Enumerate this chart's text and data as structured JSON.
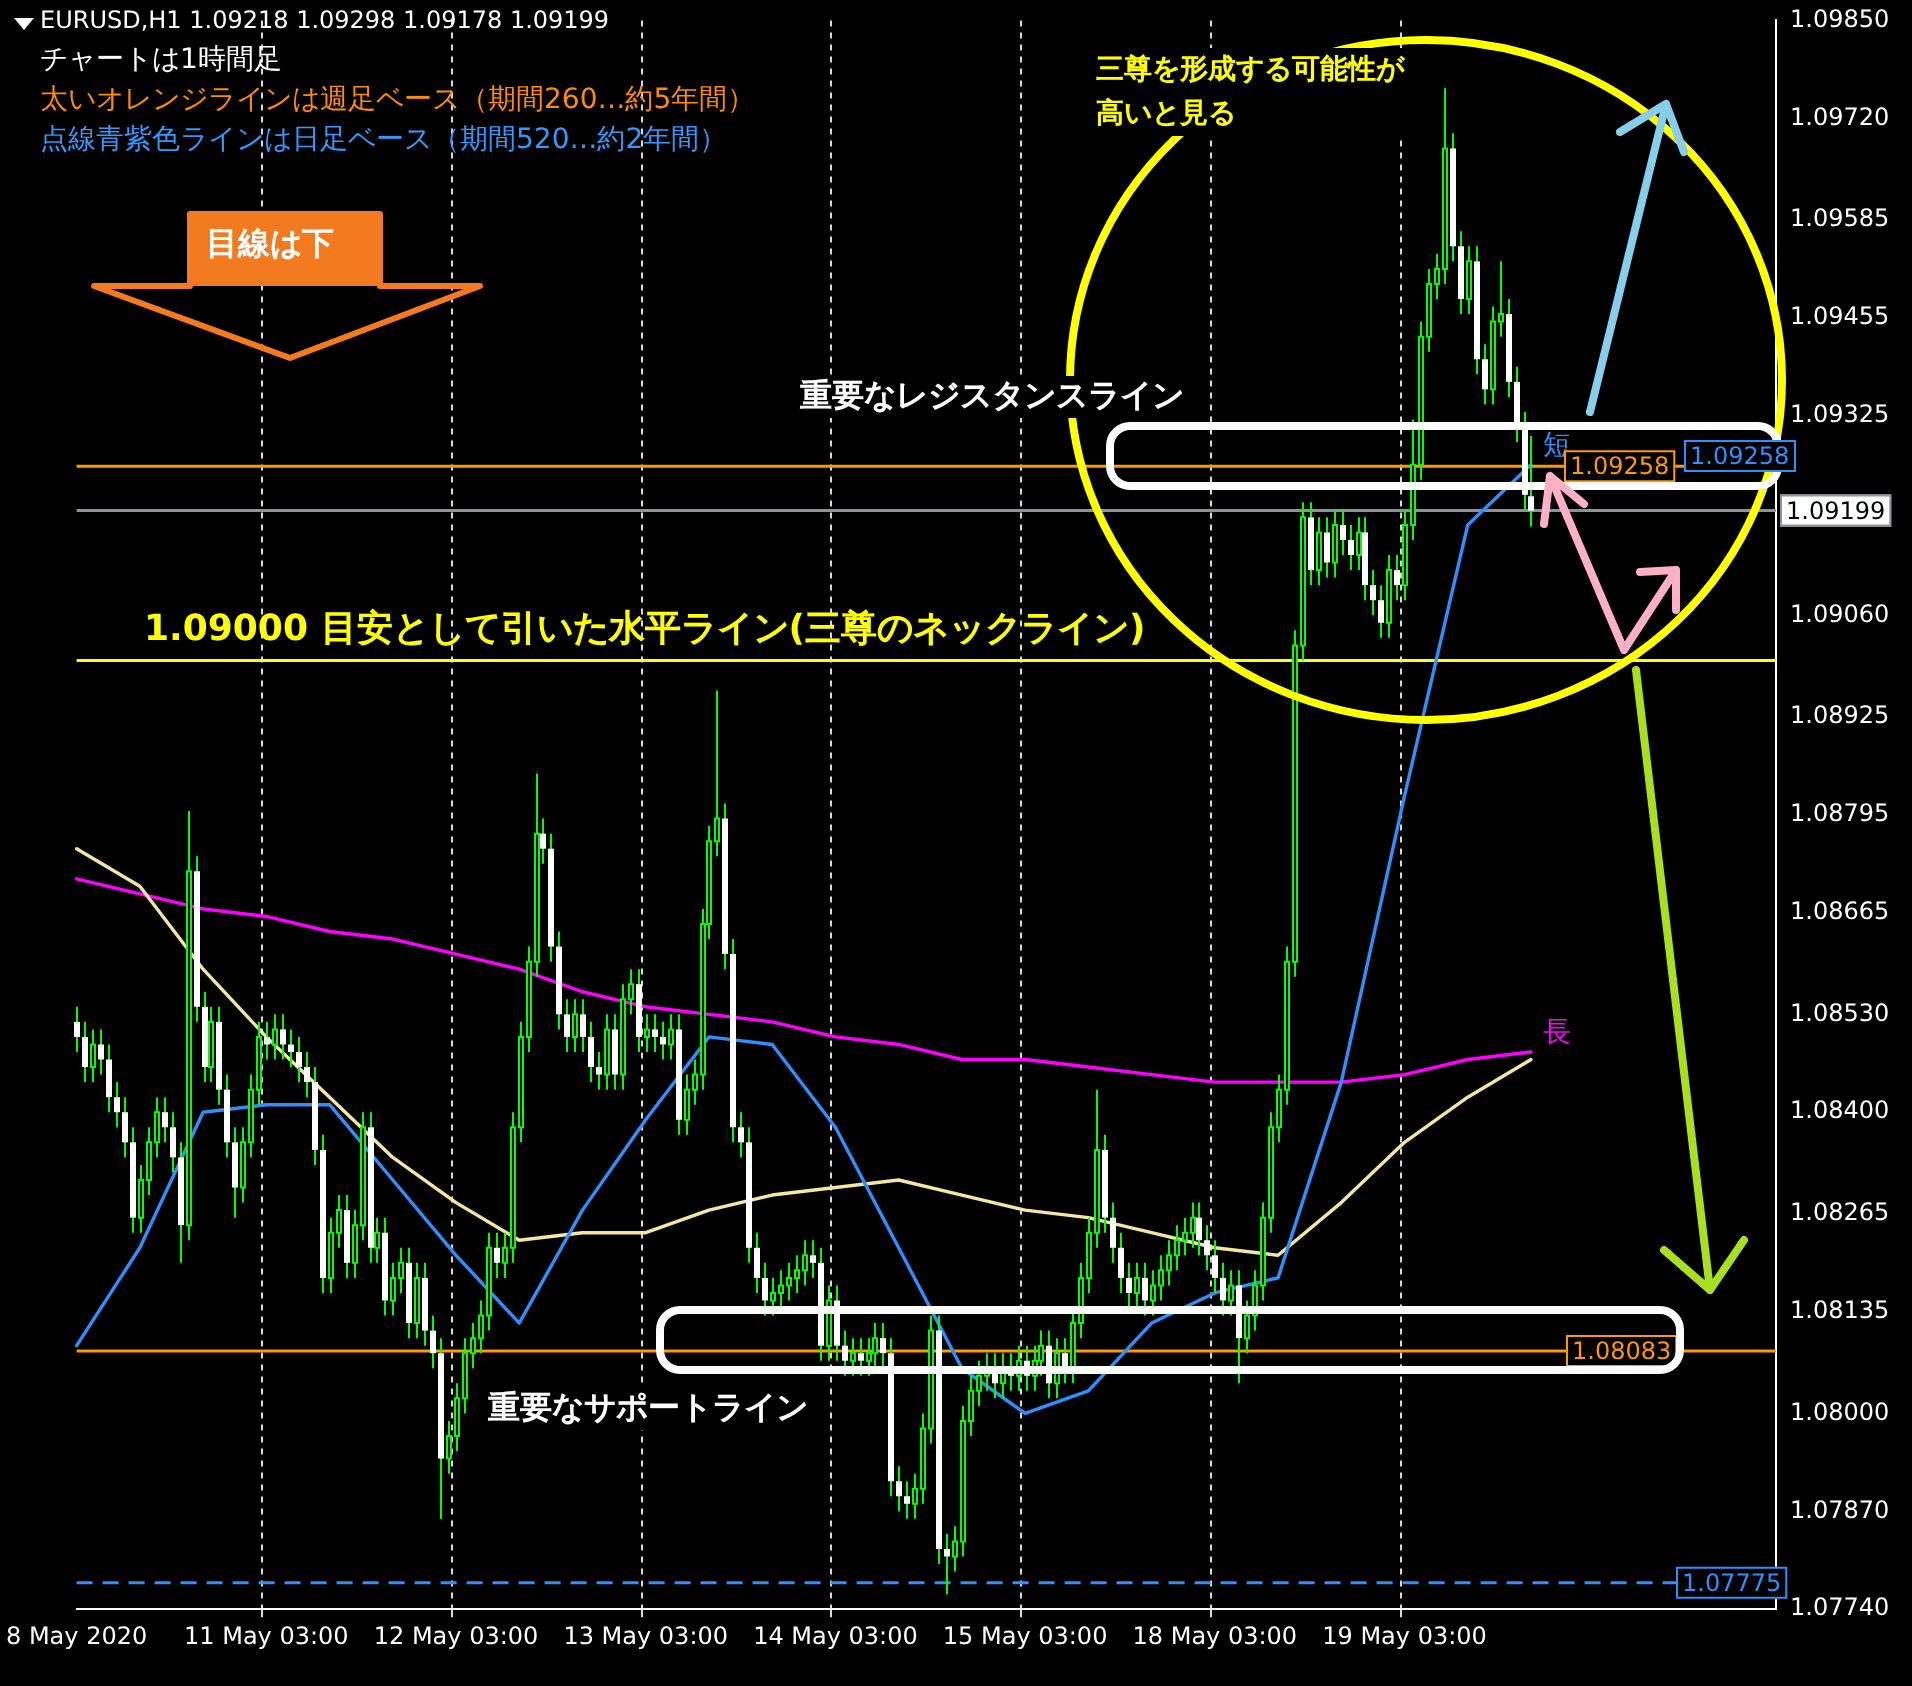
{
  "chart_data": {
    "type": "candlestick",
    "title": "EURUSD,H1  1.09218 1.09298 1.09178 1.09199",
    "categories": [
      "8 May 2020",
      null,
      null,
      null,
      null,
      null,
      null,
      null,
      null,
      null,
      null,
      null,
      null,
      null,
      null,
      null,
      null,
      null,
      null,
      null,
      null,
      null,
      null,
      null,
      "11 May 03:00",
      null,
      null,
      null,
      null,
      null,
      null,
      null,
      null,
      null,
      null,
      null,
      null,
      null,
      null,
      null,
      null,
      null,
      null,
      null,
      null,
      null,
      null,
      null,
      "12 May 03:00",
      null,
      null,
      null,
      null,
      null,
      null,
      null,
      null,
      null,
      null,
      null,
      null,
      null,
      null,
      null,
      null,
      null,
      null,
      null,
      null,
      null,
      null,
      null,
      "13 May 03:00",
      null,
      null,
      null,
      null,
      null,
      null,
      null,
      null,
      null,
      null,
      null,
      null,
      null,
      null,
      null,
      null,
      null,
      null,
      null,
      null,
      null,
      null,
      null,
      "14 May 03:00",
      null,
      null,
      null,
      null,
      null,
      null,
      null,
      null,
      null,
      null,
      null,
      null,
      null,
      null,
      null,
      null,
      null,
      null,
      null,
      null,
      null,
      null,
      null,
      "15 May 03:00",
      null,
      null,
      null,
      null,
      null,
      null,
      null,
      null,
      null,
      null,
      null,
      null,
      null,
      null,
      null,
      null,
      null,
      null,
      null,
      null,
      null,
      null,
      null,
      "18 May 03:00",
      null,
      null,
      null,
      null,
      null,
      null,
      null,
      null,
      null,
      null,
      null,
      null,
      null,
      null,
      null,
      null,
      null,
      null,
      null,
      null,
      null,
      null,
      null,
      "19 May 03:00",
      null,
      null,
      null,
      null,
      null,
      null,
      null,
      null,
      null,
      null,
      null,
      null,
      null,
      null,
      null,
      null,
      null,
      null,
      null,
      null,
      null,
      null,
      null,
      null,
      null,
      null,
      null,
      null,
      null,
      null,
      null,
      null,
      null,
      null,
      null,
      null,
      null,
      null,
      null,
      null,
      null,
      null,
      null,
      null,
      null,
      null,
      null
    ],
    "ohlc": [
      [
        1.0852,
        1.0854,
        1.0848,
        1.085
      ],
      [
        1.085,
        1.0852,
        1.0844,
        1.0846
      ],
      [
        1.0846,
        1.0851,
        1.0844,
        1.0849
      ],
      [
        1.0849,
        1.0851,
        1.0845,
        1.0847
      ],
      [
        1.0847,
        1.0849,
        1.084,
        1.0842
      ],
      [
        1.0842,
        1.0844,
        1.0838,
        1.084
      ],
      [
        1.084,
        1.0842,
        1.0834,
        1.0836
      ],
      [
        1.0836,
        1.0838,
        1.0824,
        1.0826
      ],
      [
        1.0826,
        1.0833,
        1.0824,
        1.0831
      ],
      [
        1.0831,
        1.0838,
        1.0829,
        1.0836
      ],
      [
        1.0836,
        1.0842,
        1.0834,
        1.084
      ],
      [
        1.084,
        1.0842,
        1.0836,
        1.0838
      ],
      [
        1.0838,
        1.084,
        1.0832,
        1.0834
      ],
      [
        1.0834,
        1.0836,
        1.082,
        1.0825
      ],
      [
        1.0825,
        1.088,
        1.0823,
        1.0872
      ],
      [
        1.0872,
        1.0874,
        1.0852,
        1.0854
      ],
      [
        1.0854,
        1.0856,
        1.0844,
        1.0846
      ],
      [
        1.0846,
        1.0854,
        1.0844,
        1.0852
      ],
      [
        1.0852,
        1.0854,
        1.0841,
        1.0843
      ],
      [
        1.0843,
        1.0845,
        1.0834,
        1.0836
      ],
      [
        1.0836,
        1.0838,
        1.0826,
        1.083
      ],
      [
        1.083,
        1.0838,
        1.0828,
        1.0836
      ],
      [
        1.0836,
        1.0845,
        1.0834,
        1.0843
      ],
      [
        1.0843,
        1.0852,
        1.0841,
        1.085
      ],
      [
        1.085,
        1.0852,
        1.0847,
        1.0849
      ],
      [
        1.0849,
        1.0853,
        1.0847,
        1.0851
      ],
      [
        1.0851,
        1.0853,
        1.0847,
        1.0849
      ],
      [
        1.0849,
        1.0851,
        1.0846,
        1.0848
      ],
      [
        1.0848,
        1.085,
        1.0844,
        1.0846
      ],
      [
        1.0846,
        1.0848,
        1.0842,
        1.0844
      ],
      [
        1.0844,
        1.0846,
        1.0833,
        1.0835
      ],
      [
        1.0835,
        1.0837,
        1.0816,
        1.0818
      ],
      [
        1.0818,
        1.0826,
        1.0816,
        1.0824
      ],
      [
        1.0824,
        1.0829,
        1.0822,
        1.0827
      ],
      [
        1.0827,
        1.0829,
        1.0818,
        1.082
      ],
      [
        1.082,
        1.0827,
        1.0818,
        1.0825
      ],
      [
        1.0825,
        1.084,
        1.0823,
        1.0838
      ],
      [
        1.0838,
        1.084,
        1.082,
        1.0822
      ],
      [
        1.0822,
        1.0826,
        1.082,
        1.0824
      ],
      [
        1.0824,
        1.0826,
        1.0813,
        1.0815
      ],
      [
        1.0815,
        1.082,
        1.0813,
        1.0818
      ],
      [
        1.0818,
        1.0822,
        1.0816,
        1.082
      ],
      [
        1.082,
        1.0822,
        1.081,
        1.0812
      ],
      [
        1.0812,
        1.082,
        1.081,
        1.0818
      ],
      [
        1.0818,
        1.082,
        1.0809,
        1.0811
      ],
      [
        1.0811,
        1.0813,
        1.0806,
        1.0808
      ],
      [
        1.0808,
        1.081,
        1.0786,
        1.0794
      ],
      [
        1.0794,
        1.0799,
        1.0792,
        1.0797
      ],
      [
        1.0797,
        1.0804,
        1.0795,
        1.0802
      ],
      [
        1.0802,
        1.081,
        1.08,
        1.0808
      ],
      [
        1.0808,
        1.0812,
        1.0806,
        1.081
      ],
      [
        1.081,
        1.0815,
        1.0808,
        1.0813
      ],
      [
        1.0813,
        1.0824,
        1.0811,
        1.0822
      ],
      [
        1.0822,
        1.0824,
        1.0818,
        1.082
      ],
      [
        1.082,
        1.0824,
        1.0818,
        1.0822
      ],
      [
        1.0822,
        1.084,
        1.082,
        1.0838
      ],
      [
        1.0838,
        1.0852,
        1.0836,
        1.085
      ],
      [
        1.085,
        1.0862,
        1.0848,
        1.086
      ],
      [
        1.086,
        1.0885,
        1.0858,
        1.0877
      ],
      [
        1.0877,
        1.0879,
        1.0873,
        1.0875
      ],
      [
        1.0875,
        1.0877,
        1.086,
        1.0862
      ],
      [
        1.0862,
        1.0864,
        1.0851,
        1.0853
      ],
      [
        1.0853,
        1.0855,
        1.0848,
        1.085
      ],
      [
        1.085,
        1.0855,
        1.0848,
        1.0853
      ],
      [
        1.0853,
        1.0855,
        1.0848,
        1.085
      ],
      [
        1.085,
        1.0852,
        1.0844,
        1.0846
      ],
      [
        1.0846,
        1.0848,
        1.0843,
        1.0845
      ],
      [
        1.0845,
        1.0853,
        1.0843,
        1.0851
      ],
      [
        1.0851,
        1.0853,
        1.0843,
        1.0845
      ],
      [
        1.0845,
        1.0857,
        1.0843,
        1.0855
      ],
      [
        1.0855,
        1.0859,
        1.0853,
        1.0857
      ],
      [
        1.0857,
        1.0859,
        1.0848,
        1.085
      ],
      [
        1.085,
        1.0853,
        1.0848,
        1.0851
      ],
      [
        1.0851,
        1.0853,
        1.0848,
        1.085
      ],
      [
        1.085,
        1.0852,
        1.0847,
        1.0849
      ],
      [
        1.0849,
        1.0853,
        1.0847,
        1.0851
      ],
      [
        1.0851,
        1.0853,
        1.0837,
        1.0839
      ],
      [
        1.0839,
        1.0845,
        1.0837,
        1.0843
      ],
      [
        1.0843,
        1.0847,
        1.0841,
        1.0845
      ],
      [
        1.0845,
        1.0867,
        1.0843,
        1.0865
      ],
      [
        1.0865,
        1.0878,
        1.0863,
        1.0876
      ],
      [
        1.0876,
        1.0896,
        1.0874,
        1.0879
      ],
      [
        1.0879,
        1.0881,
        1.0859,
        1.0861
      ],
      [
        1.0861,
        1.0863,
        1.0836,
        1.0838
      ],
      [
        1.0838,
        1.084,
        1.0834,
        1.0836
      ],
      [
        1.0836,
        1.0838,
        1.082,
        1.0822
      ],
      [
        1.0822,
        1.0824,
        1.0816,
        1.0818
      ],
      [
        1.0818,
        1.082,
        1.0813,
        1.0815
      ],
      [
        1.0815,
        1.0818,
        1.0813,
        1.0816
      ],
      [
        1.0816,
        1.0819,
        1.0814,
        1.0817
      ],
      [
        1.0817,
        1.082,
        1.0815,
        1.0818
      ],
      [
        1.0818,
        1.0821,
        1.0816,
        1.0819
      ],
      [
        1.0819,
        1.0823,
        1.0817,
        1.0821
      ],
      [
        1.0821,
        1.0823,
        1.0818,
        1.082
      ],
      [
        1.082,
        1.0822,
        1.0807,
        1.0809
      ],
      [
        1.0809,
        1.0817,
        1.0807,
        1.0815
      ],
      [
        1.0815,
        1.0817,
        1.0807,
        1.0809
      ],
      [
        1.0809,
        1.0811,
        1.0805,
        1.0807
      ],
      [
        1.0807,
        1.081,
        1.0805,
        1.0808
      ],
      [
        1.0808,
        1.081,
        1.0805,
        1.0807
      ],
      [
        1.0807,
        1.081,
        1.0805,
        1.0808
      ],
      [
        1.0808,
        1.0812,
        1.0806,
        1.081
      ],
      [
        1.081,
        1.0812,
        1.0806,
        1.0808
      ],
      [
        1.0808,
        1.081,
        1.0789,
        1.0791
      ],
      [
        1.0791,
        1.0793,
        1.0787,
        1.0789
      ],
      [
        1.0789,
        1.0791,
        1.0786,
        1.0788
      ],
      [
        1.0788,
        1.0792,
        1.0786,
        1.079
      ],
      [
        1.079,
        1.08,
        1.0788,
        1.0798
      ],
      [
        1.0798,
        1.0813,
        1.0796,
        1.0811
      ],
      [
        1.0811,
        1.0813,
        1.078,
        1.0782
      ],
      [
        1.0782,
        1.0784,
        1.0776,
        1.0781
      ],
      [
        1.0781,
        1.0785,
        1.0779,
        1.0783
      ],
      [
        1.0783,
        1.0801,
        1.0781,
        1.0799
      ],
      [
        1.0799,
        1.0805,
        1.0797,
        1.0803
      ],
      [
        1.0803,
        1.0807,
        1.0801,
        1.0805
      ],
      [
        1.0805,
        1.0808,
        1.0803,
        1.0806
      ],
      [
        1.0806,
        1.0808,
        1.0802,
        1.0804
      ],
      [
        1.0804,
        1.0808,
        1.0802,
        1.0806
      ],
      [
        1.0806,
        1.0808,
        1.0803,
        1.0805
      ],
      [
        1.0805,
        1.0809,
        1.0803,
        1.0807
      ],
      [
        1.0807,
        1.0809,
        1.0803,
        1.0805
      ],
      [
        1.0805,
        1.0809,
        1.0803,
        1.0807
      ],
      [
        1.0807,
        1.0811,
        1.0805,
        1.0809
      ],
      [
        1.0809,
        1.0811,
        1.0802,
        1.0804
      ],
      [
        1.0804,
        1.081,
        1.0802,
        1.0808
      ],
      [
        1.0808,
        1.081,
        1.0804,
        1.0806
      ],
      [
        1.0806,
        1.0814,
        1.0804,
        1.0812
      ],
      [
        1.0812,
        1.082,
        1.081,
        1.0818
      ],
      [
        1.0818,
        1.0826,
        1.0816,
        1.0824
      ],
      [
        1.0824,
        1.0843,
        1.0822,
        1.0835
      ],
      [
        1.0835,
        1.0837,
        1.0824,
        1.0826
      ],
      [
        1.0826,
        1.0828,
        1.082,
        1.0822
      ],
      [
        1.0822,
        1.0824,
        1.0816,
        1.0818
      ],
      [
        1.0818,
        1.082,
        1.0814,
        1.0816
      ],
      [
        1.0816,
        1.082,
        1.0814,
        1.0818
      ],
      [
        1.0818,
        1.082,
        1.0813,
        1.0815
      ],
      [
        1.0815,
        1.0819,
        1.0813,
        1.0817
      ],
      [
        1.0817,
        1.0821,
        1.0815,
        1.0819
      ],
      [
        1.0819,
        1.0823,
        1.0817,
        1.0821
      ],
      [
        1.0821,
        1.0825,
        1.0819,
        1.0823
      ],
      [
        1.0823,
        1.0826,
        1.0821,
        1.0824
      ],
      [
        1.0824,
        1.0828,
        1.0822,
        1.0826
      ],
      [
        1.0826,
        1.0828,
        1.0821,
        1.0823
      ],
      [
        1.0823,
        1.0825,
        1.0819,
        1.0821
      ],
      [
        1.0821,
        1.0823,
        1.0816,
        1.0818
      ],
      [
        1.0818,
        1.082,
        1.0813,
        1.0815
      ],
      [
        1.0815,
        1.0819,
        1.0813,
        1.0817
      ],
      [
        1.0817,
        1.0819,
        1.0804,
        1.081
      ],
      [
        1.081,
        1.0815,
        1.0808,
        1.0813
      ],
      [
        1.0813,
        1.0819,
        1.0811,
        1.0817
      ],
      [
        1.0817,
        1.0828,
        1.0815,
        1.0826
      ],
      [
        1.0826,
        1.084,
        1.0824,
        1.0838
      ],
      [
        1.0838,
        1.0845,
        1.0836,
        1.0843
      ],
      [
        1.0843,
        1.0862,
        1.0841,
        1.086
      ],
      [
        1.086,
        1.0904,
        1.0858,
        1.0902
      ],
      [
        1.0902,
        1.0921,
        1.09,
        1.0919
      ],
      [
        1.0919,
        1.0921,
        1.091,
        1.0912
      ],
      [
        1.0912,
        1.0919,
        1.091,
        1.0917
      ],
      [
        1.0917,
        1.0919,
        1.0911,
        1.0913
      ],
      [
        1.0913,
        1.092,
        1.0911,
        1.0918
      ],
      [
        1.0918,
        1.092,
        1.0914,
        1.0916
      ],
      [
        1.0916,
        1.0918,
        1.0912,
        1.0914
      ],
      [
        1.0914,
        1.0919,
        1.0912,
        1.0917
      ],
      [
        1.0917,
        1.0919,
        1.0908,
        1.091
      ],
      [
        1.091,
        1.0912,
        1.0906,
        1.0908
      ],
      [
        1.0908,
        1.091,
        1.0903,
        1.0905
      ],
      [
        1.0905,
        1.0914,
        1.0903,
        1.0912
      ],
      [
        1.0912,
        1.0914,
        1.0908,
        1.091
      ],
      [
        1.091,
        1.092,
        1.0908,
        1.0918
      ],
      [
        1.0918,
        1.0932,
        1.0916,
        1.0926
      ],
      [
        1.0926,
        1.0945,
        1.0924,
        1.0943
      ],
      [
        1.0943,
        1.0952,
        1.0941,
        1.095
      ],
      [
        1.095,
        1.0954,
        1.0948,
        1.0952
      ],
      [
        1.0952,
        1.0976,
        1.095,
        1.0968
      ],
      [
        1.0968,
        1.097,
        1.0953,
        1.0955
      ],
      [
        1.0955,
        1.0957,
        1.0946,
        1.0948
      ],
      [
        1.0948,
        1.0955,
        1.0946,
        1.0953
      ],
      [
        1.0953,
        1.0955,
        1.0938,
        1.094
      ],
      [
        1.094,
        1.0942,
        1.0934,
        1.0936
      ],
      [
        1.0936,
        1.0947,
        1.0934,
        1.0945
      ],
      [
        1.0945,
        1.0953,
        1.0943,
        1.0946
      ],
      [
        1.0946,
        1.0948,
        1.0935,
        1.0937
      ],
      [
        1.0937,
        1.0939,
        1.0929,
        1.0931
      ],
      [
        1.0931,
        1.0933,
        1.092,
        1.0922
      ],
      [
        1.09218,
        1.09298,
        1.09178,
        1.09199
      ],
      null,
      null,
      null,
      null,
      null,
      null,
      null,
      null,
      null,
      null,
      null,
      null,
      null,
      null,
      null,
      null,
      null,
      null,
      null,
      null,
      null,
      null,
      null,
      null,
      null,
      null,
      null,
      null,
      null,
      null,
      null
    ],
    "series": [
      {
        "type": "line",
        "name": "短",
        "color": "#2f8fff",
        "values": [
          1.0809,
          null,
          null,
          null,
          null,
          null,
          null,
          null,
          1.0822,
          null,
          null,
          null,
          null,
          null,
          null,
          null,
          1.084,
          null,
          null,
          null,
          null,
          null,
          null,
          null,
          1.0841,
          null,
          null,
          null,
          null,
          null,
          null,
          null,
          1.0841,
          null,
          null,
          null,
          null,
          null,
          null,
          null,
          1.0831,
          null,
          null,
          null,
          null,
          null,
          null,
          null,
          1.0821,
          null,
          null,
          null,
          null,
          null,
          null,
          null,
          1.0812,
          null,
          null,
          null,
          null,
          null,
          null,
          null,
          1.0827,
          null,
          null,
          null,
          null,
          null,
          null,
          null,
          1.0839,
          null,
          null,
          null,
          null,
          null,
          null,
          null,
          1.085,
          null,
          null,
          null,
          null,
          null,
          null,
          null,
          1.0849,
          null,
          null,
          null,
          null,
          null,
          null,
          null,
          1.0838,
          null,
          null,
          null,
          null,
          null,
          null,
          null,
          1.0822,
          null,
          null,
          null,
          null,
          null,
          null,
          null,
          1.0806,
          null,
          null,
          null,
          null,
          null,
          null,
          null,
          1.08,
          null,
          null,
          null,
          null,
          null,
          null,
          null,
          1.0803,
          null,
          null,
          null,
          null,
          null,
          null,
          null,
          1.0812,
          null,
          null,
          null,
          null,
          null,
          null,
          null,
          1.0816,
          null,
          null,
          null,
          null,
          null,
          null,
          null,
          1.0818,
          null,
          null,
          null,
          null,
          null,
          null,
          null,
          1.0844,
          null,
          null,
          null,
          null,
          null,
          null,
          null,
          1.0882,
          null,
          null,
          null,
          null,
          null,
          null,
          null,
          1.0918,
          null,
          null,
          null,
          null,
          null,
          null,
          null,
          1.0926,
          null,
          null,
          null,
          null,
          null,
          null,
          null,
          null,
          null,
          null,
          null,
          null,
          null,
          null,
          null,
          null,
          null,
          null,
          null,
          null,
          null,
          null,
          null,
          null,
          null,
          null,
          null,
          null,
          null,
          null,
          null
        ]
      },
      {
        "type": "line",
        "color": "#f5e6a0",
        "values": [
          1.0875,
          null,
          null,
          null,
          null,
          null,
          null,
          null,
          1.087,
          null,
          null,
          null,
          null,
          null,
          null,
          null,
          1.0859,
          null,
          null,
          null,
          null,
          null,
          null,
          null,
          1.085,
          null,
          null,
          null,
          null,
          null,
          null,
          null,
          1.0842,
          null,
          null,
          null,
          null,
          null,
          null,
          null,
          1.0834,
          null,
          null,
          null,
          null,
          null,
          null,
          null,
          1.0828,
          null,
          null,
          null,
          null,
          null,
          null,
          null,
          1.0823,
          null,
          null,
          null,
          null,
          null,
          null,
          null,
          1.0824,
          null,
          null,
          null,
          null,
          null,
          null,
          null,
          1.0824,
          null,
          null,
          null,
          null,
          null,
          null,
          null,
          1.0827,
          null,
          null,
          null,
          null,
          null,
          null,
          null,
          1.0829,
          null,
          null,
          null,
          null,
          null,
          null,
          null,
          1.083,
          null,
          null,
          null,
          null,
          null,
          null,
          null,
          1.0831,
          null,
          null,
          null,
          null,
          null,
          null,
          null,
          1.0829,
          null,
          null,
          null,
          null,
          null,
          null,
          null,
          1.0827,
          null,
          null,
          null,
          null,
          null,
          null,
          null,
          1.0826,
          null,
          null,
          null,
          null,
          null,
          null,
          null,
          1.0824,
          null,
          null,
          null,
          null,
          null,
          null,
          null,
          1.0822,
          null,
          null,
          null,
          null,
          null,
          null,
          null,
          1.0821,
          null,
          null,
          null,
          null,
          null,
          null,
          null,
          1.0828,
          null,
          null,
          null,
          null,
          null,
          null,
          null,
          1.0836,
          null,
          null,
          null,
          null,
          null,
          null,
          null,
          1.0842,
          null,
          null,
          null,
          null,
          null,
          null,
          null,
          1.0847,
          null,
          null,
          null,
          null,
          null,
          null,
          null,
          null,
          null,
          null,
          null,
          null,
          null,
          null,
          null,
          null,
          null,
          null,
          null,
          null,
          null,
          null,
          null,
          null,
          null,
          null,
          null,
          null,
          null,
          null,
          null
        ]
      },
      {
        "type": "line",
        "name": "長",
        "color": "#ff00ff",
        "values": [
          1.0871,
          null,
          null,
          null,
          null,
          null,
          null,
          null,
          1.0869,
          null,
          null,
          null,
          null,
          null,
          null,
          null,
          1.0867,
          null,
          null,
          null,
          null,
          null,
          null,
          null,
          1.0866,
          null,
          null,
          null,
          null,
          null,
          null,
          null,
          1.0864,
          null,
          null,
          null,
          null,
          null,
          null,
          null,
          1.0863,
          null,
          null,
          null,
          null,
          null,
          null,
          null,
          1.0861,
          null,
          null,
          null,
          null,
          null,
          null,
          null,
          1.0859,
          null,
          null,
          null,
          null,
          null,
          null,
          null,
          1.0856,
          null,
          null,
          null,
          null,
          null,
          null,
          null,
          1.0854,
          null,
          null,
          null,
          null,
          null,
          null,
          null,
          1.0853,
          null,
          null,
          null,
          null,
          null,
          null,
          null,
          1.0852,
          null,
          null,
          null,
          null,
          null,
          null,
          null,
          1.085,
          null,
          null,
          null,
          null,
          null,
          null,
          null,
          1.0849,
          null,
          null,
          null,
          null,
          null,
          null,
          null,
          1.0847,
          null,
          null,
          null,
          null,
          null,
          null,
          null,
          1.0847,
          null,
          null,
          null,
          null,
          null,
          null,
          null,
          1.0846,
          null,
          null,
          null,
          null,
          null,
          null,
          null,
          1.0845,
          null,
          null,
          null,
          null,
          null,
          null,
          null,
          1.0844,
          null,
          null,
          null,
          null,
          null,
          null,
          null,
          1.0844,
          null,
          null,
          null,
          null,
          null,
          null,
          null,
          1.0844,
          null,
          null,
          null,
          null,
          null,
          null,
          null,
          1.0845,
          null,
          null,
          null,
          null,
          null,
          null,
          null,
          1.0847,
          null,
          null,
          null,
          null,
          null,
          null,
          null,
          1.0848,
          null,
          null,
          null,
          null,
          null,
          null,
          null,
          null,
          null,
          null,
          null,
          null,
          null,
          null,
          null,
          null,
          null,
          null,
          null,
          null,
          null,
          null,
          null,
          null,
          null,
          null,
          null,
          null,
          null,
          null,
          null
        ]
      }
    ],
    "ylim": [
      1.0774,
      1.0985
    ],
    "yticks": [
      {
        "value": 1.0985,
        "label": "1.09850"
      },
      {
        "value": 1.0972,
        "label": "1.09720"
      },
      {
        "value": 1.09585,
        "label": "1.09585"
      },
      {
        "value": 1.09455,
        "label": "1.09455"
      },
      {
        "value": 1.09325,
        "label": "1.09325"
      },
      {
        "value": 1.0906,
        "label": "1.09060"
      },
      {
        "value": 1.08925,
        "label": "1.08925"
      },
      {
        "value": 1.08795,
        "label": "1.08795"
      },
      {
        "value": 1.08665,
        "label": "1.08665"
      },
      {
        "value": 1.0853,
        "label": "1.08530"
      },
      {
        "value": 1.084,
        "label": "1.08400"
      },
      {
        "value": 1.08265,
        "label": "1.08265"
      },
      {
        "value": 1.08135,
        "label": "1.08135"
      },
      {
        "value": 1.08,
        "label": "1.08000"
      },
      {
        "value": 1.0787,
        "label": "1.07870"
      },
      {
        "value": 1.0774,
        "label": "1.07740"
      }
    ],
    "grid": "x",
    "ref_lines": [
      {
        "axis": "y",
        "value": 1.09258,
        "label": "1.09258",
        "color": "#ff9900"
      },
      {
        "axis": "y",
        "value": 1.08083,
        "label": "1.08083",
        "color": "#ff9900"
      },
      {
        "axis": "y",
        "value": 1.07775,
        "label": "1.07775",
        "color": "#2f8fff",
        "line_style": "dashed"
      },
      {
        "axis": "y",
        "value": 1.09199,
        "label": "1.09199",
        "color": "#8a949e"
      },
      {
        "axis": "y",
        "value": 1.09,
        "label": "1.09000 目安として引いた水平ライン(三尊のネックライン)",
        "color": "#ffff00"
      }
    ],
    "annotations": [
      "チャートは1時間足",
      "太いオレンジラインは週足ベース（期間260…約5年間）",
      "点線青紫色ラインは日足ベース（期間520…約2年間）",
      "目線は下",
      "三尊を形成する可能性が高いと見る",
      "重要なレジスタンスライン",
      "重要なサポートライン",
      "1.09258"
    ]
  }
}
